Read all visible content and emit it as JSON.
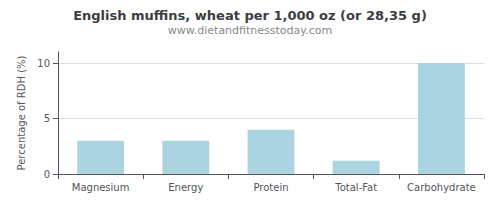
{
  "chart_data": {
    "type": "bar",
    "title": "English muffins, wheat per 1,000 oz (or 28,35 g)",
    "subtitle": "www.dietandfitnesstoday.com",
    "categories": [
      "Magnesium",
      "Energy",
      "Protein",
      "Total-Fat",
      "Carbohydrate"
    ],
    "values": [
      3.0,
      3.0,
      4.0,
      1.2,
      10.0
    ],
    "color": "#aad4df",
    "ylabel": "Percentage of RDH (%)",
    "ylim": [
      0,
      11
    ],
    "yticks": [
      0,
      5,
      10
    ],
    "grid": true
  }
}
